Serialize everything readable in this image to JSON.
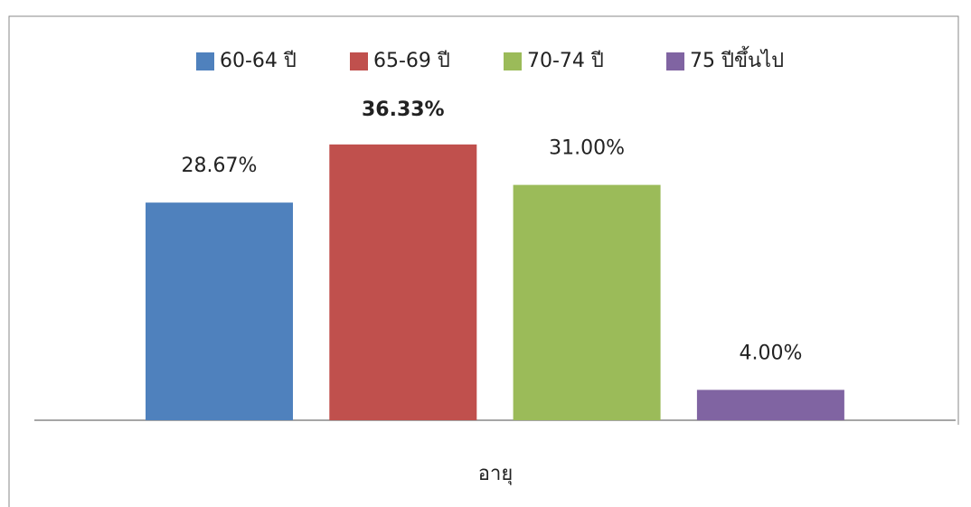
{
  "chart_data": {
    "type": "bar",
    "categories": [
      "อายุ"
    ],
    "series": [
      {
        "name": "60-64 ปี",
        "color": "#4f81bd",
        "values": [
          28.67
        ],
        "value_labels": [
          "28.67%"
        ]
      },
      {
        "name": "65-69 ปี",
        "color": "#c0504d",
        "values": [
          36.33
        ],
        "value_labels": [
          "36.33%"
        ]
      },
      {
        "name": "70-74 ปี",
        "color": "#9bbb59",
        "values": [
          31.0
        ],
        "value_labels": [
          "31.00%"
        ]
      },
      {
        "name": "75 ปีขึ้นไป",
        "color": "#8064a2",
        "values": [
          4.0
        ],
        "value_labels": [
          "4.00%"
        ]
      }
    ],
    "ylim": [
      0,
      40
    ]
  }
}
